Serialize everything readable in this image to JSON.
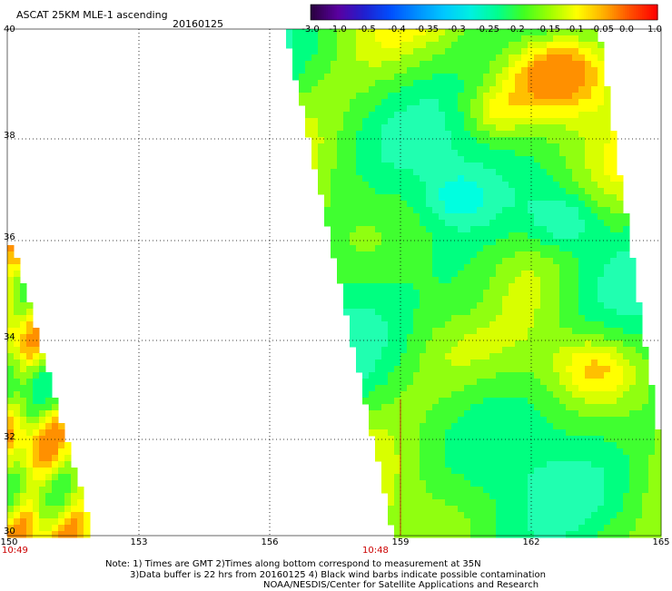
{
  "header": {
    "title": "ASCAT 25KM MLE-1 ascending",
    "date": "20160125"
  },
  "colorbar": {
    "ticks": [
      "-3.0",
      "-1.0",
      "-0.5",
      "-0.4",
      "-0.35",
      "-0.3",
      "-0.25",
      "-0.2",
      "-0.15",
      "-0.1",
      "-0.05",
      "0.0",
      "1.0"
    ],
    "colors": [
      "#2a0040",
      "#5a00a0",
      "#2020d0",
      "#0050ff",
      "#0090ff",
      "#00c8ff",
      "#00f0e0",
      "#00ff90",
      "#40ff20",
      "#a0ff00",
      "#ffff00",
      "#ffb000",
      "#ff5000",
      "#ff0000"
    ]
  },
  "map": {
    "lon_range": [
      150,
      165
    ],
    "lat_range": [
      30,
      40
    ],
    "lon_ticks": [
      "150",
      "153",
      "156",
      "159",
      "162",
      "165"
    ],
    "lat_ticks": [
      "40",
      "38",
      "36",
      "34",
      "32",
      "30"
    ],
    "pass_times": [
      {
        "label": "10:49",
        "lon": 150
      },
      {
        "label": "10:48",
        "lon": 158.6
      }
    ]
  },
  "notes": {
    "line1": "Note: 1) Times are GMT 2)Times along bottom correspond to measurement at 35N",
    "line2": "3)Data buffer is 22 hrs from 20160125 4) Black wind barbs indicate possible contamination",
    "line3": "NOAA/NESDIS/Center for Satellite Applications and Research"
  }
}
